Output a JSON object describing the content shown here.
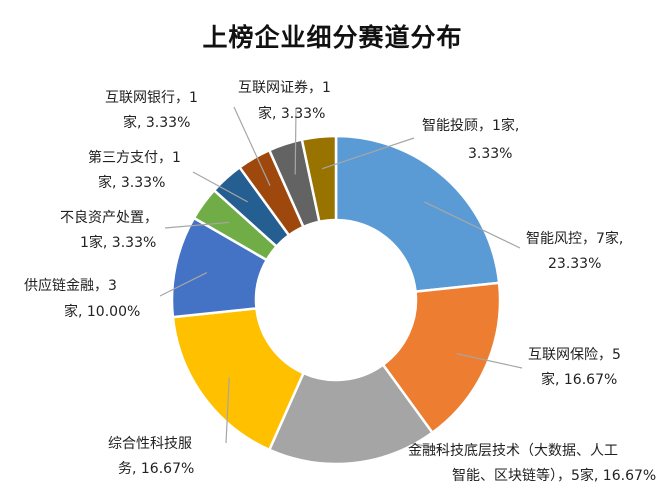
{
  "chart_data": {
    "type": "pie",
    "donut": true,
    "title": "上榜企业细分赛道分布",
    "legend": "none",
    "unit": "家",
    "slices": [
      {
        "name": "智能风控",
        "value": 7,
        "percent": "23.33%",
        "color": "#5B9BD5",
        "label_lines": [
          "智能风控，7家,",
          "23.33%"
        ]
      },
      {
        "name": "互联网保险",
        "value": 5,
        "percent": "16.67%",
        "color": "#ED7D31",
        "label_lines": [
          "互联网保险，5",
          "家, 16.67%"
        ]
      },
      {
        "name": "金融科技底层技术（大数据、人工智能、区块链等）",
        "value": 5,
        "percent": "16.67%",
        "color": "#A5A5A5",
        "label_lines": [
          "金融科技底层技术（大数据、人工",
          "智能、区块链等），5家, 16.67%"
        ]
      },
      {
        "name": "综合性科技服务",
        "value": 5,
        "percent": "16.67%",
        "color": "#FFC000",
        "label_lines": [
          "综合性科技服",
          "务, 16.67%"
        ]
      },
      {
        "name": "供应链金融",
        "value": 3,
        "percent": "10.00%",
        "color": "#4472C4",
        "label_lines": [
          "供应链金融，3",
          "家, 10.00%"
        ]
      },
      {
        "name": "不良资产处置",
        "value": 1,
        "percent": "3.33%",
        "color": "#70AD47",
        "label_lines": [
          "不良资产处置，",
          "1家, 3.33%"
        ]
      },
      {
        "name": "第三方支付",
        "value": 1,
        "percent": "3.33%",
        "color": "#255E91",
        "label_lines": [
          "第三方支付，1",
          "家, 3.33%"
        ]
      },
      {
        "name": "互联网银行",
        "value": 1,
        "percent": "3.33%",
        "color": "#9E480E",
        "label_lines": [
          "互联网银行，1",
          "家, 3.33%"
        ]
      },
      {
        "name": "互联网证券",
        "value": 1,
        "percent": "3.33%",
        "color": "#636363",
        "label_lines": [
          "互联网证券，1",
          "家, 3.33%"
        ]
      },
      {
        "name": "智能投顾",
        "value": 1,
        "percent": "3.33%",
        "color": "#997300",
        "label_lines": [
          "智能投顾，1家,",
          "3.33%"
        ]
      }
    ]
  }
}
